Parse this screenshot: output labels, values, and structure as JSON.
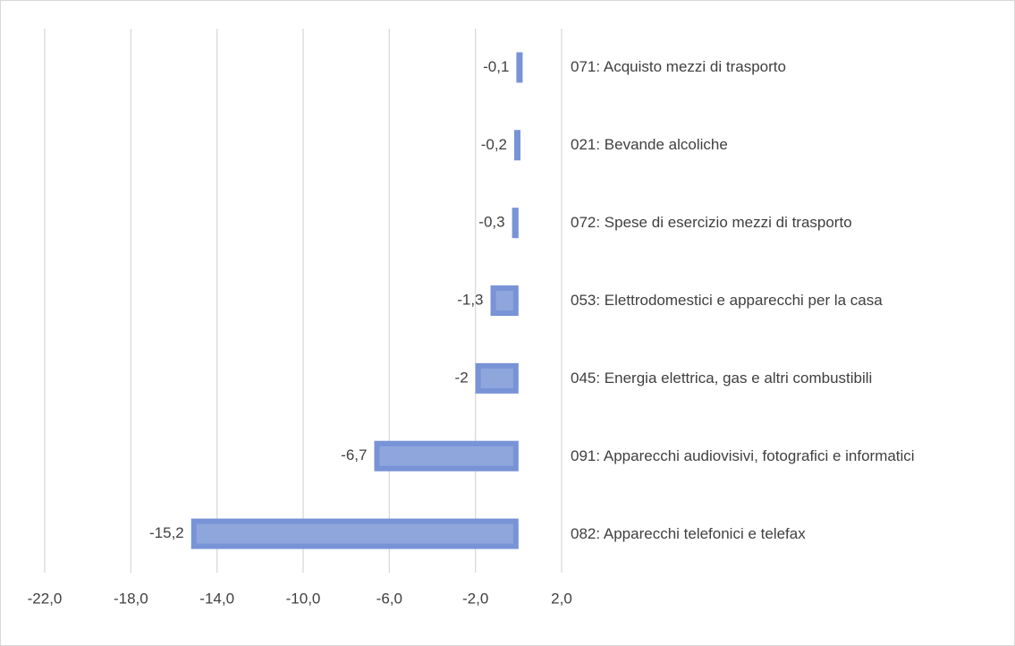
{
  "chart_data": {
    "type": "hbar",
    "categories": [
      "071: Acquisto mezzi di trasporto",
      "021: Bevande alcoliche",
      "072: Spese di esercizio mezzi di trasporto",
      "053: Elettrodomestici e apparecchi per la casa",
      "045: Energia elettrica, gas e altri combustibili",
      "091: Apparecchi audiovisivi, fotografici e informatici",
      "082: Apparecchi telefonici e telefax"
    ],
    "values": [
      -0.1,
      -0.2,
      -0.3,
      -1.3,
      -2,
      -6.7,
      -15.2
    ],
    "value_labels": [
      "-0,1",
      "-0,2",
      "-0,3",
      "-1,3",
      "-2",
      "-6,7",
      "-15,2"
    ],
    "color": "#8fa6dd",
    "xlim": [
      -22,
      2
    ],
    "xticks": [
      {
        "value": -22,
        "label": "-22,0"
      },
      {
        "value": -18,
        "label": "-18,0"
      },
      {
        "value": -14,
        "label": "-14,0"
      },
      {
        "value": -10,
        "label": "-10,0"
      },
      {
        "value": -6,
        "label": "-6,0"
      },
      {
        "value": -2,
        "label": "-2,0"
      },
      {
        "value": 2,
        "label": "2,0"
      }
    ],
    "grid": true
  }
}
